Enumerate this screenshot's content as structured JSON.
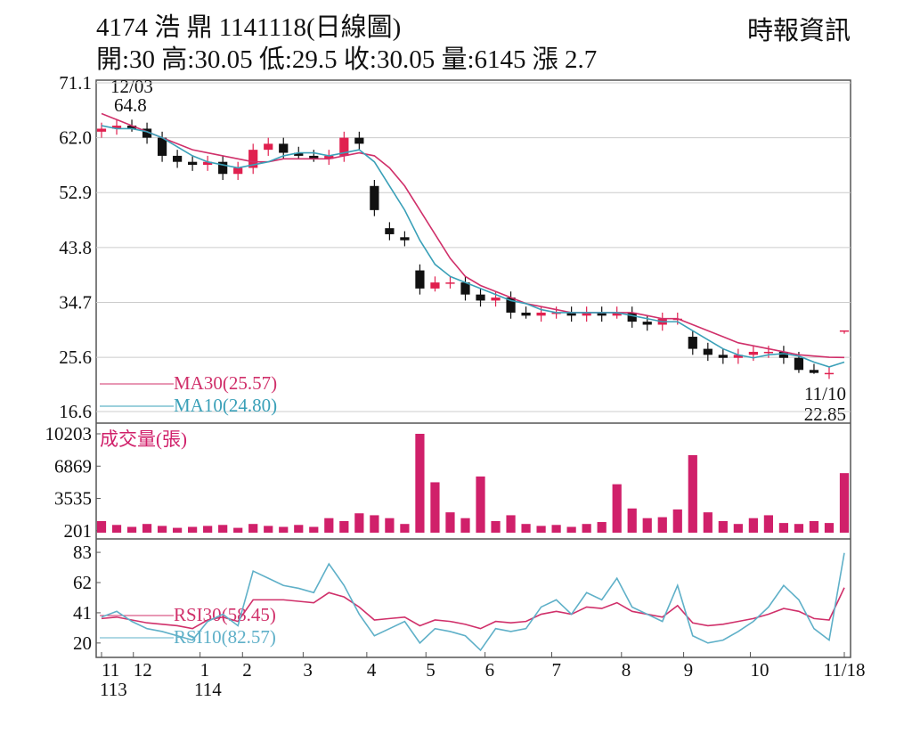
{
  "header": {
    "title": "4174  浩  鼎 1141118(日線圖)",
    "source": "時報資訊",
    "info": "開:30 高:30.05 低:29.5 收:30.05 量:6145 漲 2.7"
  },
  "chart_data": [
    {
      "type": "candlestick",
      "ylim": [
        16.6,
        71.1
      ],
      "yticks": [
        {
          "value": 71.1,
          "label": "71.1"
        },
        {
          "value": 62,
          "label": "62.0"
        },
        {
          "value": 52.9,
          "label": "52.9"
        },
        {
          "value": 43.8,
          "label": "43.8"
        },
        {
          "value": 34.7,
          "label": "34.7"
        },
        {
          "value": 25.6,
          "label": "25.6"
        },
        {
          "value": 16.6,
          "label": "16.6"
        }
      ],
      "grid": true,
      "up_color": "#e0204f",
      "down_color": "#111111",
      "annotations": [
        "12/03",
        "64.8",
        "11/10",
        "22.85"
      ],
      "open": [
        63,
        63.5,
        64,
        63.5,
        62,
        59,
        58,
        57.5,
        58,
        56,
        57,
        60,
        61,
        59.5,
        59,
        58.5,
        59,
        62,
        54,
        47,
        45.5,
        40,
        37,
        38,
        38,
        36,
        35,
        35.5,
        33,
        32.5,
        33,
        33,
        32.5,
        33,
        32.5,
        33,
        31.5,
        31,
        32,
        29,
        27,
        26,
        25.5,
        26,
        26.5,
        26.5,
        25.5,
        23.5,
        23,
        30
      ],
      "high": [
        64.5,
        65,
        65,
        64.5,
        63,
        60,
        59,
        59,
        59,
        58,
        61,
        62,
        62,
        60.5,
        60,
        60,
        63,
        63,
        55,
        48,
        46.5,
        41,
        39,
        39,
        39,
        37,
        36.5,
        36.5,
        34,
        34,
        34,
        34,
        34,
        34,
        34,
        34,
        32.5,
        33,
        33,
        30,
        28,
        27,
        27,
        27.5,
        27.5,
        27.5,
        26.5,
        24.5,
        24,
        30.05
      ],
      "low": [
        62,
        62.5,
        63,
        61,
        58,
        57,
        56.5,
        56.5,
        55,
        55,
        56,
        59,
        58.5,
        58.5,
        58,
        57.5,
        58,
        60,
        49,
        45,
        44,
        36,
        36.5,
        37,
        35,
        34,
        34,
        32,
        32,
        31.5,
        32,
        31.5,
        31.5,
        31.5,
        32,
        30.5,
        30,
        30,
        31,
        26,
        25,
        24.5,
        24.5,
        25,
        25.5,
        24.5,
        23,
        22.85,
        22,
        29.5
      ],
      "close": [
        63.5,
        64,
        63.5,
        62,
        59,
        58,
        57.5,
        58,
        56,
        57,
        60,
        61,
        59.5,
        59,
        58.5,
        59,
        62,
        61,
        50,
        46,
        45,
        37,
        38,
        38,
        36,
        35,
        35.5,
        33,
        32.5,
        33,
        33,
        32.5,
        33,
        32.5,
        33,
        31.5,
        31,
        32,
        32,
        27,
        26,
        25.5,
        26,
        26.5,
        26.5,
        25.5,
        23.5,
        23,
        23,
        30.05
      ],
      "series": [
        {
          "name": "MA30(25.57)",
          "color": "#d0306a",
          "values": [
            66,
            65,
            64,
            63,
            62,
            61,
            60,
            59.5,
            59,
            58.5,
            58,
            58,
            58.5,
            58.5,
            58.5,
            58.5,
            59,
            59.5,
            59,
            57,
            54,
            50,
            46,
            42,
            39,
            37.5,
            36.5,
            35.5,
            34.5,
            34,
            33.5,
            33,
            33,
            33,
            33,
            33,
            32.5,
            32,
            32,
            31,
            30,
            29,
            28,
            27.5,
            27,
            26.5,
            26,
            25.8,
            25.6,
            25.57
          ]
        },
        {
          "name": "MA10(24.80)",
          "color": "#3aa0b8",
          "values": [
            64,
            63.5,
            63.5,
            63,
            62,
            60.5,
            59,
            58,
            57.5,
            57,
            57.5,
            58,
            59,
            59.5,
            59.5,
            59,
            59.5,
            60,
            58,
            54,
            50,
            45,
            41,
            39,
            38,
            37,
            36,
            35,
            34.5,
            33.5,
            33,
            33,
            33,
            33,
            33,
            32.5,
            32,
            31.5,
            31.5,
            30,
            28.5,
            27,
            26,
            25.5,
            26,
            26.2,
            25.8,
            24.8,
            24,
            24.8
          ]
        }
      ]
    },
    {
      "type": "bar",
      "title": "成交量(張)",
      "ylim": [
        0,
        10203
      ],
      "yticks": [
        201,
        3535,
        6869,
        10203
      ],
      "color": "#d0206a",
      "values": [
        1200,
        800,
        600,
        900,
        700,
        500,
        600,
        700,
        800,
        500,
        900,
        700,
        600,
        800,
        600,
        1500,
        1200,
        2000,
        1800,
        1500,
        900,
        10203,
        5200,
        2100,
        1500,
        5800,
        1200,
        1800,
        900,
        700,
        800,
        600,
        900,
        1100,
        5000,
        2500,
        1500,
        1600,
        2400,
        8000,
        2100,
        1200,
        900,
        1500,
        1800,
        1000,
        900,
        1200,
        1000,
        6145
      ]
    },
    {
      "type": "line",
      "ylim": [
        10,
        88
      ],
      "yticks": [
        83,
        62,
        41,
        20
      ],
      "xticks": [
        {
          "value": 0,
          "label": "11"
        },
        {
          "value": 2.1,
          "label": "12"
        },
        {
          "value": 6.5,
          "label": "1"
        },
        {
          "value": 9.3,
          "label": "2"
        },
        {
          "value": 13.3,
          "label": "3"
        },
        {
          "value": 17.5,
          "label": "4"
        },
        {
          "value": 21.4,
          "label": "5"
        },
        {
          "value": 25.3,
          "label": "6"
        },
        {
          "value": 29.7,
          "label": "7"
        },
        {
          "value": 34.3,
          "label": "8"
        },
        {
          "value": 38.4,
          "label": "9"
        },
        {
          "value": 42.8,
          "label": "10"
        },
        {
          "value": 49,
          "label": "11/18"
        }
      ],
      "year_labels": [
        "113",
        "114"
      ],
      "series": [
        {
          "name": "RSI30(58.45)",
          "color": "#d0306a",
          "values": [
            37,
            38,
            36,
            34,
            33,
            32,
            30,
            36,
            38,
            35,
            50,
            50,
            50,
            49,
            48,
            55,
            52,
            45,
            36,
            37,
            38,
            32,
            36,
            35,
            33,
            30,
            35,
            34,
            35,
            40,
            42,
            40,
            45,
            44,
            48,
            42,
            40,
            38,
            46,
            34,
            32,
            33,
            35,
            37,
            40,
            44,
            42,
            37,
            36,
            58.45
          ]
        },
        {
          "name": "RSI10(82.57)",
          "color": "#5fb0c8",
          "values": [
            38,
            42,
            35,
            30,
            28,
            25,
            22,
            35,
            40,
            32,
            70,
            65,
            60,
            58,
            55,
            75,
            60,
            40,
            25,
            30,
            35,
            20,
            30,
            28,
            25,
            15,
            30,
            28,
            30,
            45,
            50,
            40,
            55,
            50,
            65,
            45,
            40,
            35,
            60,
            25,
            20,
            22,
            28,
            35,
            45,
            60,
            50,
            30,
            22,
            82.57
          ]
        }
      ]
    }
  ]
}
